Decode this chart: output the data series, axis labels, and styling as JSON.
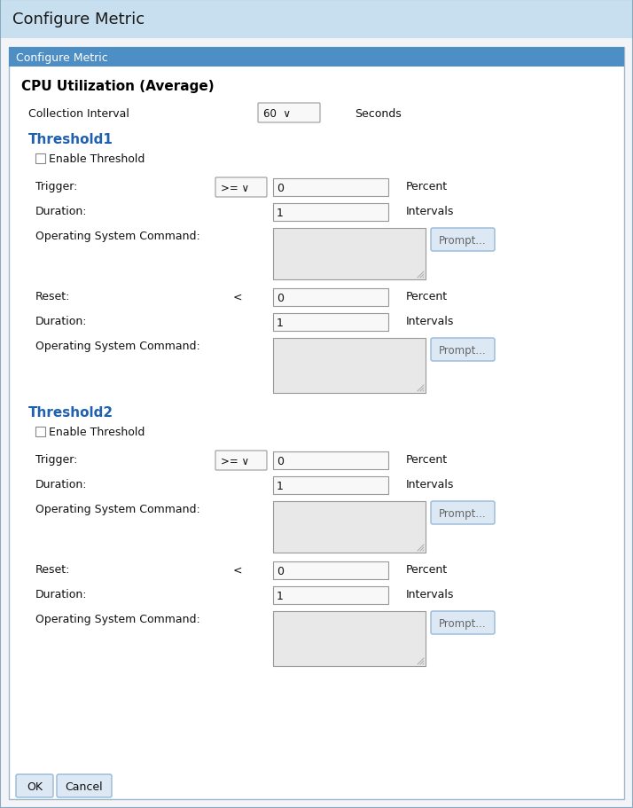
{
  "title": "Configure Metric",
  "panel_title": "Configure Metric",
  "cpu_title": "CPU Utilization (Average)",
  "collection_interval_label": "Collection Interval",
  "collection_interval_value": "60  ∨",
  "seconds_label": "Seconds",
  "threshold1_label": "Threshold1",
  "threshold2_label": "Threshold2",
  "enable_threshold": "Enable Threshold",
  "trigger_label": "Trigger:",
  "trigger_op": ">= ∨",
  "trigger_value": "0",
  "trigger_unit": "Percent",
  "duration_label": "Duration:",
  "duration_value": "1",
  "duration_unit": "Intervals",
  "os_command_label": "Operating System Command:",
  "prompt_label": "Prompt...",
  "reset_label": "Reset:",
  "reset_op": "<",
  "reset_value": "0",
  "reset_unit": "Percent",
  "ok_label": "OK",
  "cancel_label": "Cancel",
  "bg_color": "#e8eef5",
  "title_bar_color": "#c8dff0",
  "panel_header_color": "#4d8ec4",
  "panel_header_text_color": "#ffffff",
  "threshold_color": "#2060b0",
  "body_bg": "#ffffff",
  "border_color": "#a0b8cc",
  "input_bg": "#f8f8f8",
  "input_border": "#999999",
  "textarea_bg": "#e8e8e8",
  "button_bg": "#dde8f5",
  "button_border": "#99b8d8"
}
